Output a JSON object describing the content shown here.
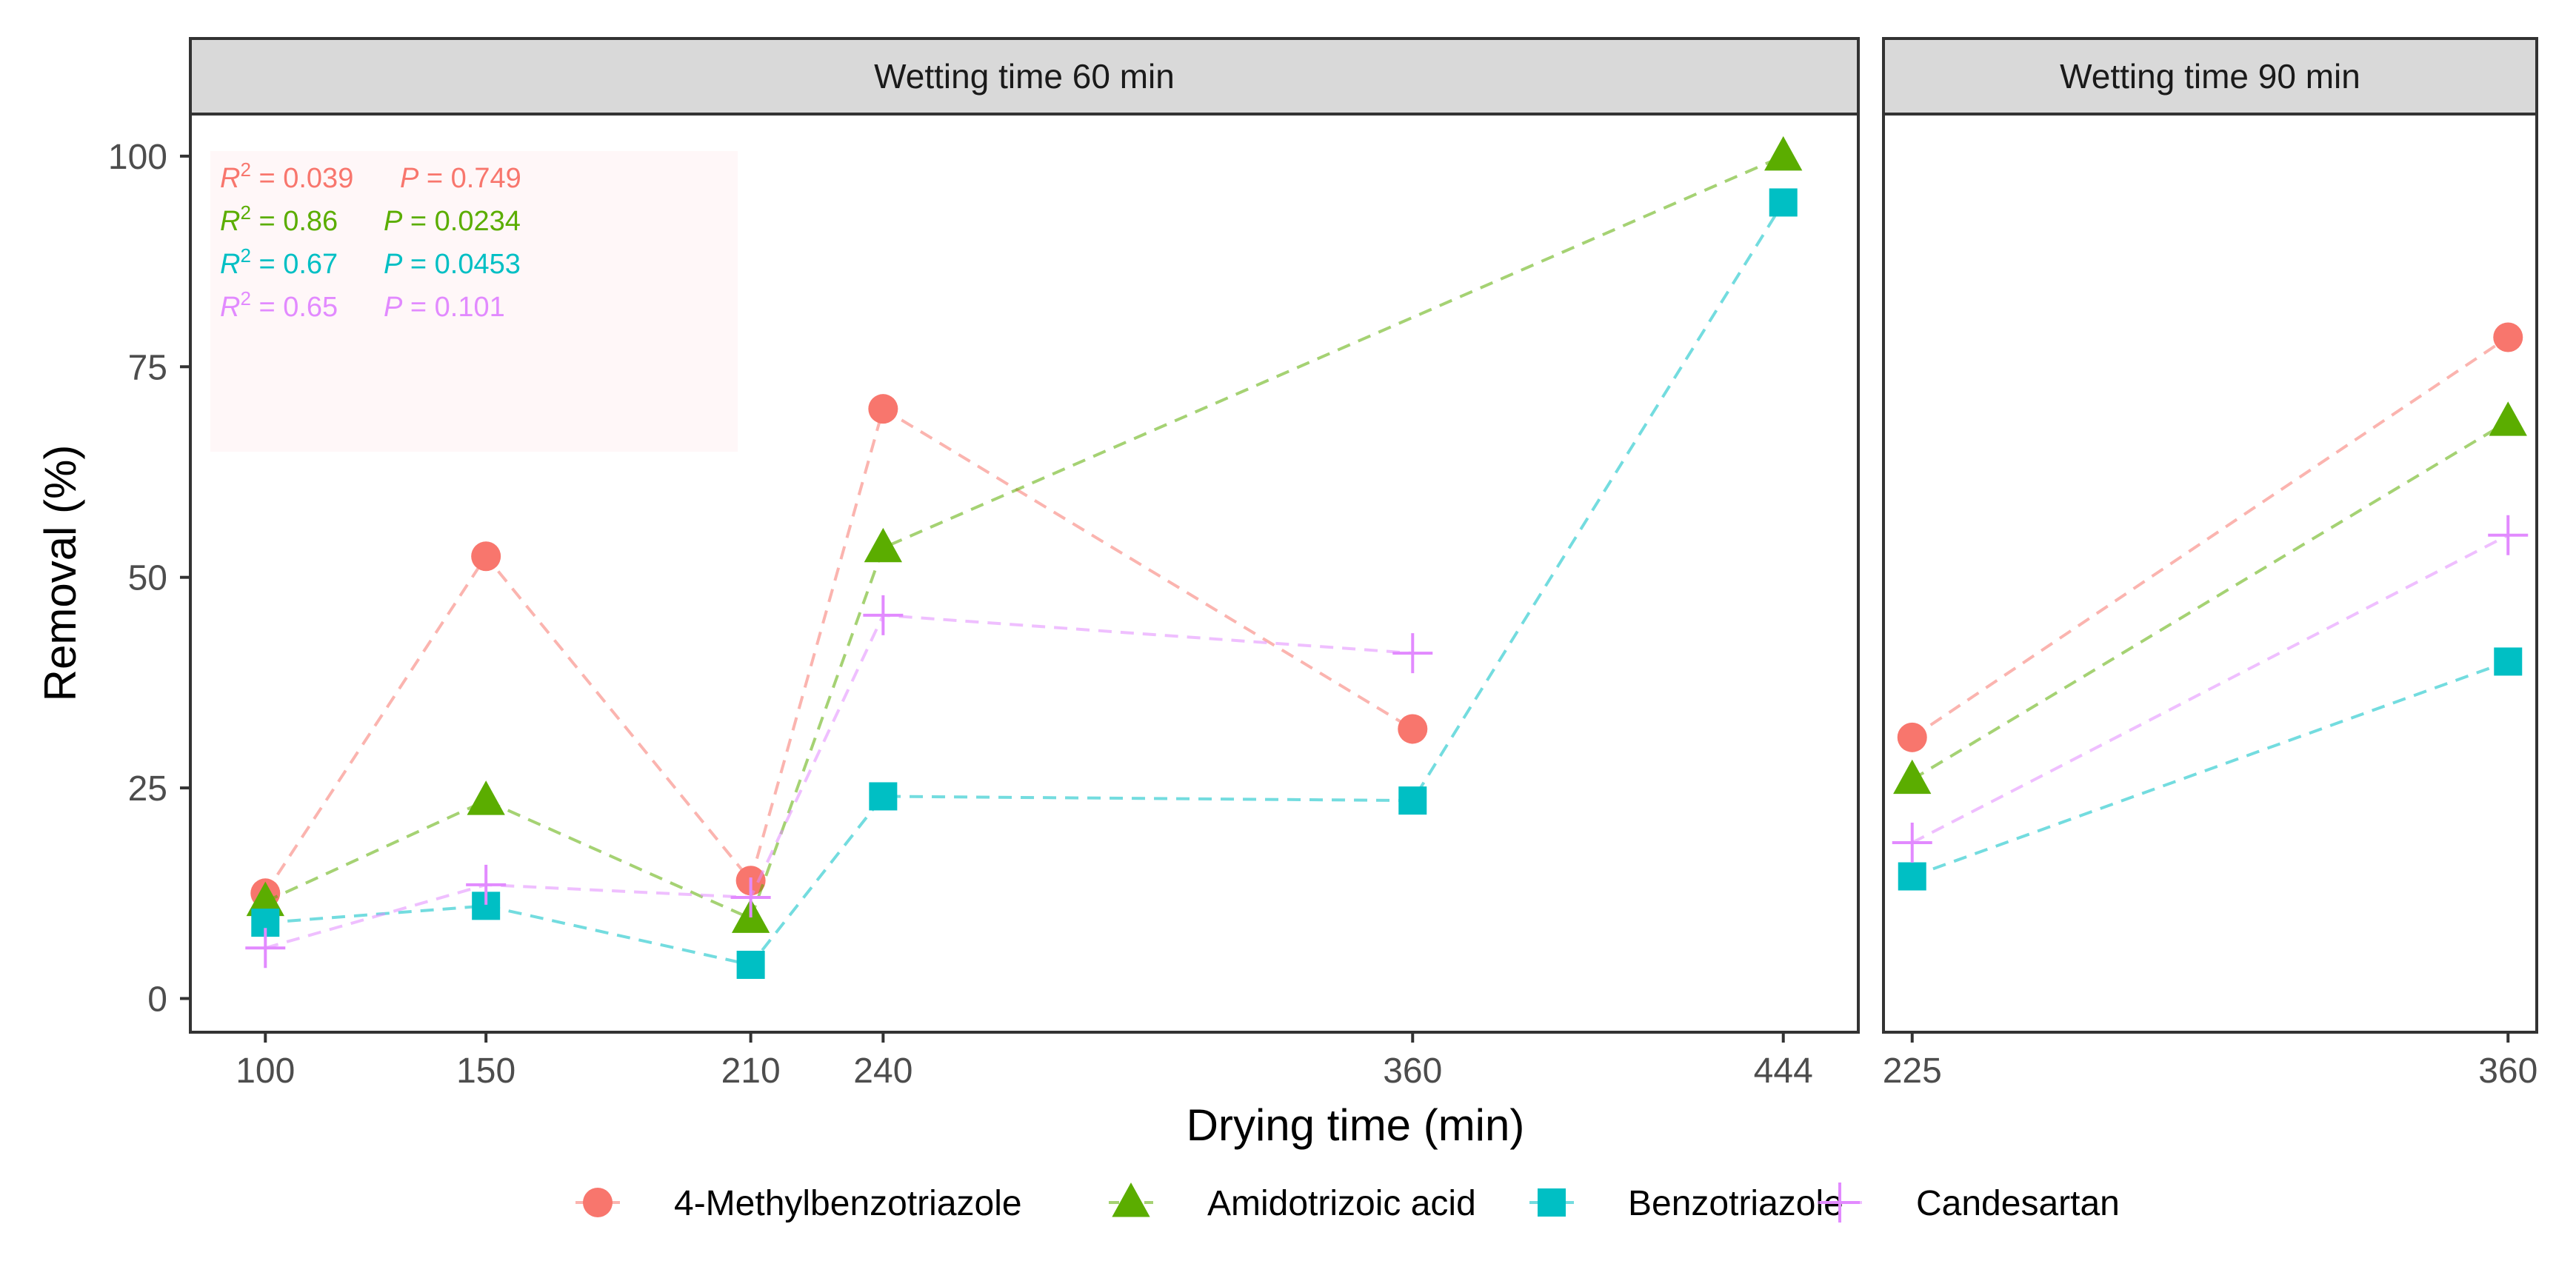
{
  "chart_data": {
    "type": "line",
    "xlabel": "Drying time (min)",
    "ylabel": "Removal (%)",
    "ylim": [
      -4,
      105
    ],
    "yticks": [
      "0",
      "25",
      "50",
      "75",
      "100"
    ],
    "ytick_values": [
      0,
      25,
      50,
      75,
      100
    ],
    "line_style": "dashed",
    "colors": {
      "4-Methylbenzotriazole": "#F8766D",
      "Amidotrizoic acid": "#5BAD00",
      "Benzotriazole": "#00BFC4",
      "Candesartan": "#E28AFF"
    },
    "panels": [
      {
        "title": "Wetting time 60 min",
        "x_categories": [
          "100",
          "150",
          "210",
          "240",
          "360",
          "444"
        ],
        "x_values": [
          100,
          150,
          210,
          240,
          360,
          444
        ],
        "xlim": [
          83,
          461
        ],
        "series": [
          {
            "name": "4-Methylbenzotriazole",
            "marker": "circle",
            "x": [
              100,
              150,
              210,
              240,
              360
            ],
            "values": [
              12.5,
              52.5,
              14,
              70,
              32
            ]
          },
          {
            "name": "Amidotrizoic acid",
            "marker": "triangle",
            "x": [
              100,
              150,
              210,
              240,
              444
            ],
            "values": [
              11.5,
              23.5,
              9.5,
              53.5,
              100
            ]
          },
          {
            "name": "Benzotriazole",
            "marker": "square",
            "x": [
              100,
              150,
              210,
              240,
              360,
              444
            ],
            "values": [
              9,
              11,
              4,
              24,
              23.5,
              94.5
            ]
          },
          {
            "name": "Candesartan",
            "marker": "plus",
            "x": [
              100,
              150,
              210,
              240,
              360
            ],
            "values": [
              6,
              13.5,
              12,
              45.5,
              41
            ]
          }
        ],
        "stats": [
          {
            "series": "4-Methylbenzotriazole",
            "r2_label": "R",
            "r2_sup": "2",
            "r2_value": " = 0.039",
            "p_label": "P",
            "p_value": " = 0.749"
          },
          {
            "series": "Amidotrizoic acid",
            "r2_label": "R",
            "r2_sup": "2",
            "r2_value": " = 0.86",
            "p_label": "P",
            "p_value": " = 0.0234"
          },
          {
            "series": "Benzotriazole",
            "r2_label": "R",
            "r2_sup": "2",
            "r2_value": " = 0.67",
            "p_label": "P",
            "p_value": " = 0.0453"
          },
          {
            "series": "Candesartan",
            "r2_label": "R",
            "r2_sup": "2",
            "r2_value": " = 0.65",
            "p_label": "P",
            "p_value": " = 0.101"
          }
        ]
      },
      {
        "title": "Wetting time 90 min",
        "x_categories": [
          "225",
          "360"
        ],
        "x_values": [
          225,
          360
        ],
        "xlim": [
          218.5,
          366.5
        ],
        "series": [
          {
            "name": "4-Methylbenzotriazole",
            "marker": "circle",
            "x": [
              225,
              360
            ],
            "values": [
              31,
              78.5
            ]
          },
          {
            "name": "Amidotrizoic acid",
            "marker": "triangle",
            "x": [
              225,
              360
            ],
            "values": [
              26,
              68.5
            ]
          },
          {
            "name": "Benzotriazole",
            "marker": "square",
            "x": [
              225,
              360
            ],
            "values": [
              14.5,
              40
            ]
          },
          {
            "name": "Candesartan",
            "marker": "plus",
            "x": [
              225,
              360
            ],
            "values": [
              18.5,
              55
            ]
          }
        ]
      }
    ],
    "legend": {
      "position": "bottom",
      "items": [
        {
          "label": "4-Methylbenzotriazole",
          "marker": "circle"
        },
        {
          "label": "Amidotrizoic acid",
          "marker": "triangle"
        },
        {
          "label": "Benzotriazole",
          "marker": "square"
        },
        {
          "label": "Candesartan",
          "marker": "plus"
        }
      ]
    }
  }
}
